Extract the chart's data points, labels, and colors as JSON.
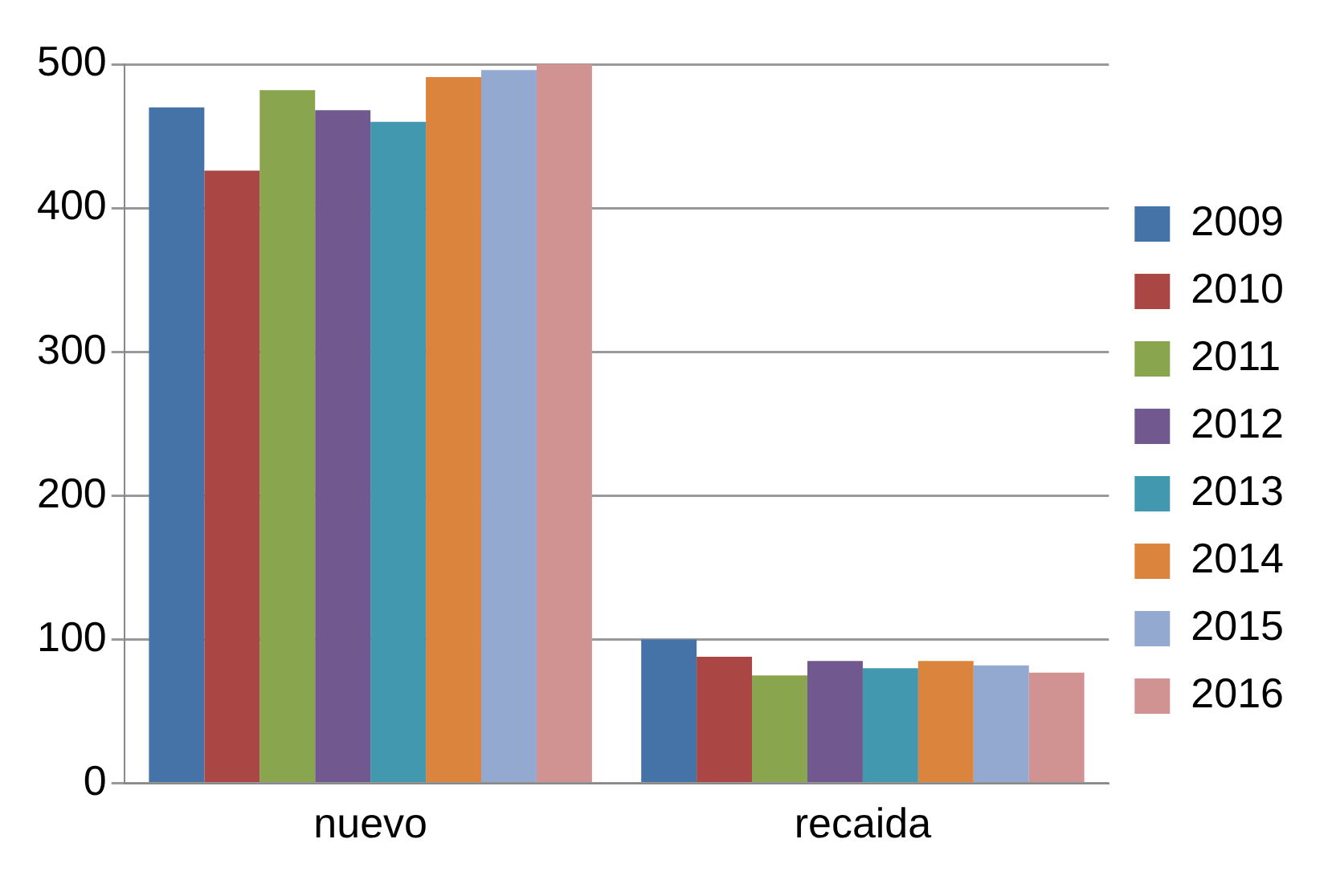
{
  "chart_data": {
    "type": "bar",
    "categories": [
      "nuevo",
      "recaida"
    ],
    "series": [
      {
        "name": "2009",
        "color": "#4572a7",
        "values": [
          470,
          100
        ]
      },
      {
        "name": "2010",
        "color": "#aa4643",
        "values": [
          426,
          88
        ]
      },
      {
        "name": "2011",
        "color": "#89a54e",
        "values": [
          482,
          75
        ]
      },
      {
        "name": "2012",
        "color": "#71588f",
        "values": [
          468,
          85
        ]
      },
      {
        "name": "2013",
        "color": "#4198af",
        "values": [
          460,
          80
        ]
      },
      {
        "name": "2014",
        "color": "#db843d",
        "values": [
          491,
          85
        ]
      },
      {
        "name": "2015",
        "color": "#93a9cf",
        "values": [
          496,
          82
        ]
      },
      {
        "name": "2016",
        "color": "#d19392",
        "values": [
          500,
          77
        ]
      }
    ],
    "ylim": [
      0,
      500
    ],
    "yticks": [
      0,
      100,
      200,
      300,
      400,
      500
    ],
    "grid": "y",
    "legend": "right"
  }
}
